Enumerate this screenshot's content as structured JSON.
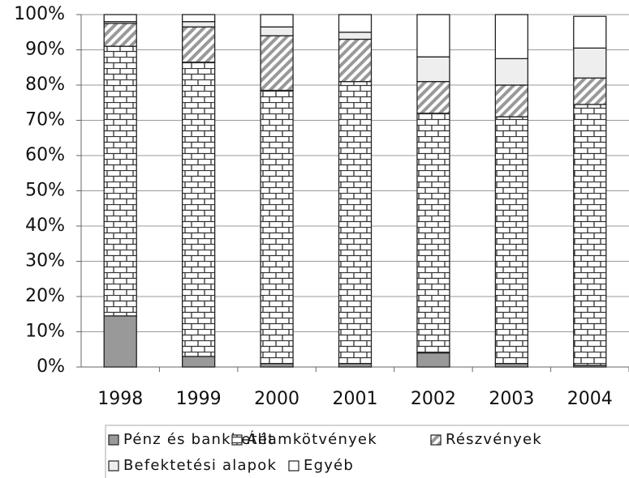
{
  "chart_data": {
    "type": "stacked_bar_100",
    "categories": [
      "1998",
      "1999",
      "2000",
      "2001",
      "2002",
      "2003",
      "2004"
    ],
    "series": [
      {
        "name": "Pénz és bankbetét",
        "color": "#999999",
        "pattern": "solid",
        "values": [
          14.5,
          3,
          1,
          1,
          4,
          1,
          0.5
        ]
      },
      {
        "name": "Államkötvények",
        "color": "#ffffff",
        "pattern": "brick",
        "values": [
          76.5,
          83.5,
          77.5,
          80,
          68,
          70,
          74
        ]
      },
      {
        "name": "Részvények",
        "color": "#ffffff",
        "pattern": "hatch",
        "values": [
          6.5,
          10,
          15.5,
          12,
          9,
          9,
          7.5
        ]
      },
      {
        "name": "Befektetési alapok",
        "color": "#eeeeee",
        "pattern": "solid",
        "values": [
          0.5,
          1.5,
          2.5,
          2,
          7,
          7.5,
          8.5
        ]
      },
      {
        "name": "Egyéb",
        "color": "#ffffff",
        "pattern": "solid",
        "values": [
          2,
          2,
          3.5,
          5,
          12,
          12.5,
          9
        ]
      }
    ],
    "ylim": [
      0,
      100
    ],
    "yticks": [
      {
        "value": 0,
        "label": "0%"
      },
      {
        "value": 10,
        "label": "10%"
      },
      {
        "value": 20,
        "label": "20%"
      },
      {
        "value": 30,
        "label": "30%"
      },
      {
        "value": 40,
        "label": "40%"
      },
      {
        "value": 50,
        "label": "50%"
      },
      {
        "value": 60,
        "label": "60%"
      },
      {
        "value": 70,
        "label": "70%"
      },
      {
        "value": 80,
        "label": "80%"
      },
      {
        "value": 90,
        "label": "90%"
      },
      {
        "value": 100,
        "label": "100%"
      }
    ],
    "grid": true
  }
}
